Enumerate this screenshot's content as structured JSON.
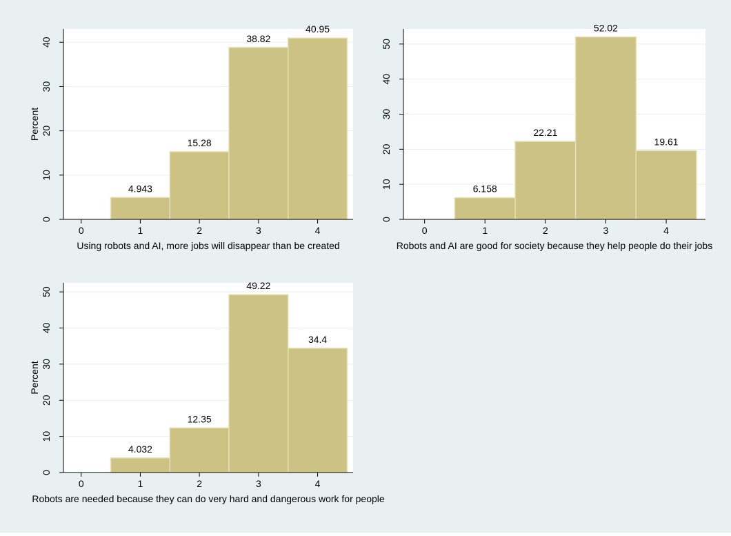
{
  "colors": {
    "background": "#e8f0f1",
    "plot_area": "#ffffff",
    "bar_fill": "#cbc284",
    "bar_edge": "#e4dfb4",
    "gridline": "#e8eff1"
  },
  "chart_data": [
    {
      "type": "bar",
      "title": "",
      "xlabel": "Using robots and AI, more jobs will disappear than be created",
      "ylabel": "Percent",
      "categories": [
        1,
        2,
        3,
        4
      ],
      "values": [
        4.943,
        15.28,
        38.82,
        40.95
      ],
      "value_labels": [
        "4.943",
        "15.28",
        "38.82",
        "40.95"
      ],
      "xticks": [
        "0",
        "1",
        "2",
        "3",
        "4"
      ],
      "yticks": [
        "0",
        "10",
        "20",
        "30",
        "40"
      ],
      "xlim": [
        -0.3,
        4.6
      ],
      "ylim": [
        0,
        43
      ],
      "grid": true
    },
    {
      "type": "bar",
      "title": "",
      "xlabel": "Robots and AI are good for society because they help people do their jobs",
      "ylabel": "",
      "categories": [
        1,
        2,
        3,
        4
      ],
      "values": [
        6.158,
        22.21,
        52.02,
        19.61
      ],
      "value_labels": [
        "6.158",
        "22.21",
        "52.02",
        "19.61"
      ],
      "xticks": [
        "0",
        "1",
        "2",
        "3",
        "4"
      ],
      "yticks": [
        "0",
        "10",
        "20",
        "30",
        "40",
        "50"
      ],
      "xlim": [
        -0.35,
        4.65
      ],
      "ylim": [
        0,
        54.3
      ],
      "grid": true
    },
    {
      "type": "bar",
      "title": "",
      "xlabel": "Robots are needed because they can do very hard and dangerous work for people",
      "ylabel": "Percent",
      "categories": [
        1,
        2,
        3,
        4
      ],
      "values": [
        4.032,
        12.35,
        49.22,
        34.4
      ],
      "value_labels": [
        "4.032",
        "12.35",
        "49.22",
        "34.4"
      ],
      "xticks": [
        "0",
        "1",
        "2",
        "3",
        "4"
      ],
      "yticks": [
        "0",
        "10",
        "20",
        "30",
        "40",
        "50"
      ],
      "xlim": [
        -0.3,
        4.6
      ],
      "ylim": [
        0,
        52.5
      ],
      "grid": true
    }
  ]
}
